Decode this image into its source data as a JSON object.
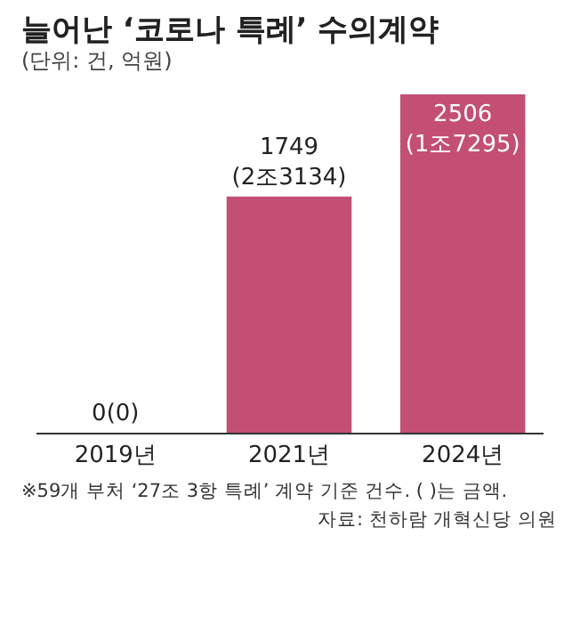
{
  "chart_data": {
    "type": "bar",
    "title": "늘어난 ‘코로나 특례’ 수의계약",
    "subtitle": "(단위: 건, 억원)",
    "categories": [
      "2019년",
      "2021년",
      "2024년"
    ],
    "values": [
      0,
      1749,
      2506
    ],
    "value_labels": [
      "0(0)",
      "1749\n(2조3134)",
      "2506\n(1조7295)"
    ],
    "color": "#c44f74",
    "annotations": [
      "※59개 부처 ‘27조 3항 특례’ 계약 기준 건수. ( )는 금액.",
      "자료: 천하람 개혁신당 의원"
    ]
  }
}
